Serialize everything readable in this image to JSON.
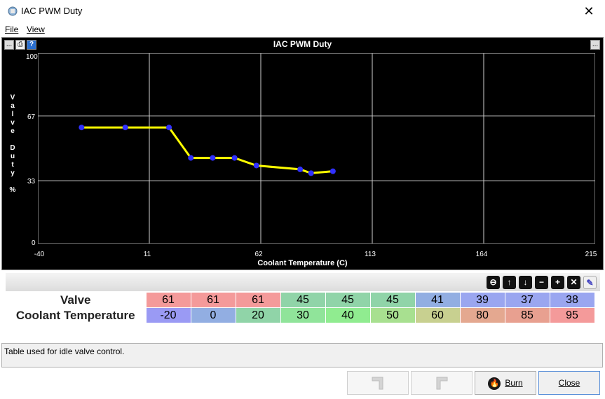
{
  "window": {
    "title": "IAC PWM Duty",
    "close_glyph": "✕"
  },
  "menu": {
    "file": "File",
    "view": "View"
  },
  "chart_data": {
    "type": "line",
    "title": "IAC PWM Duty",
    "xlabel": "Coolant Temperature (C)",
    "ylabel": "Valve Duty %",
    "xlim": [
      -40,
      215
    ],
    "ylim": [
      0,
      100
    ],
    "xticks": [
      "-40",
      "11",
      "62",
      "113",
      "164",
      "215"
    ],
    "yticks": [
      "100",
      "67",
      "33",
      "0"
    ],
    "x": [
      -20,
      0,
      20,
      30,
      40,
      50,
      60,
      80,
      85,
      95
    ],
    "y": [
      61,
      61,
      61,
      45,
      45,
      45,
      41,
      39,
      37,
      38
    ],
    "grid": true,
    "line_color": "#ffff00",
    "point_color": "#3030ff",
    "background": "#000000"
  },
  "chart_buttons": {
    "menu": "...",
    "expand": "..."
  },
  "table": {
    "rows": [
      {
        "label": "Valve",
        "values": [
          "61",
          "61",
          "61",
          "45",
          "45",
          "45",
          "41",
          "39",
          "37",
          "38"
        ],
        "colors": [
          "#f49a9a",
          "#f49a9a",
          "#f49a9a",
          "#90d4a8",
          "#90d4a8",
          "#90d4a8",
          "#92aee2",
          "#9aa6f0",
          "#9aa6f0",
          "#9aa6f0"
        ]
      },
      {
        "label": "Coolant Temperature",
        "values": [
          "-20",
          "0",
          "20",
          "30",
          "40",
          "50",
          "60",
          "80",
          "85",
          "95"
        ],
        "colors": [
          "#9a9af4",
          "#92aee2",
          "#90d4a8",
          "#90e49a",
          "#90ec90",
          "#a8e090",
          "#c8d090",
          "#e4a890",
          "#e8a090",
          "#f49a9a"
        ]
      }
    ]
  },
  "tools": [
    "⊖",
    "↑",
    "↓",
    "−",
    "+",
    "✕",
    "✎"
  ],
  "tool_icons": [
    "minus-circle-icon",
    "arrow-up-icon",
    "arrow-down-icon",
    "decrement-icon",
    "increment-icon",
    "delete-icon",
    "pencil-icon"
  ],
  "status": {
    "text": "Table used for idle valve control."
  },
  "buttons": {
    "burn": "Burn",
    "close": "Close"
  }
}
